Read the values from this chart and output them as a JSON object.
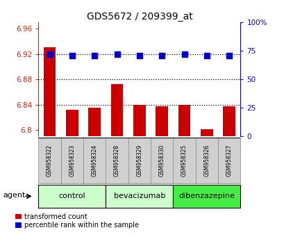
{
  "title": "GDS5672 / 209399_at",
  "samples": [
    "GSM958322",
    "GSM958323",
    "GSM958324",
    "GSM958328",
    "GSM958329",
    "GSM958330",
    "GSM958325",
    "GSM958326",
    "GSM958327"
  ],
  "red_values": [
    6.93,
    6.832,
    6.835,
    6.872,
    6.84,
    6.837,
    6.84,
    6.801,
    6.838
  ],
  "blue_values": [
    72,
    71,
    71,
    72,
    71,
    71,
    72,
    71,
    71
  ],
  "ylim_left": [
    6.79,
    6.97
  ],
  "ylim_right": [
    0,
    100
  ],
  "yticks_left": [
    6.8,
    6.84,
    6.88,
    6.92,
    6.96
  ],
  "yticks_right": [
    0,
    25,
    50,
    75,
    100
  ],
  "bar_color": "#cc0000",
  "dot_color": "#0000cc",
  "bar_bottom": 6.79,
  "bar_width": 0.55,
  "dot_size": 28,
  "legend_red": "transformed count",
  "legend_blue": "percentile rank within the sample",
  "agent_label": "agent",
  "left_color": "#cc2200",
  "right_color": "#0000cc",
  "grid_linestyle": ":",
  "grid_linewidth": 0.9,
  "cell_bg": "#d0d0d0",
  "group_defs": [
    {
      "label": "control",
      "indices": [
        0,
        1,
        2
      ],
      "color": "#ccffcc"
    },
    {
      "label": "bevacizumab",
      "indices": [
        3,
        4,
        5
      ],
      "color": "#ccffcc"
    },
    {
      "label": "dibenzazepine",
      "indices": [
        6,
        7,
        8
      ],
      "color": "#44ee44"
    }
  ],
  "title_fontsize": 10,
  "ytick_fontsize": 7.5,
  "sample_fontsize": 5.5,
  "group_fontsize": 8,
  "legend_fontsize": 7,
  "agent_fontsize": 8
}
